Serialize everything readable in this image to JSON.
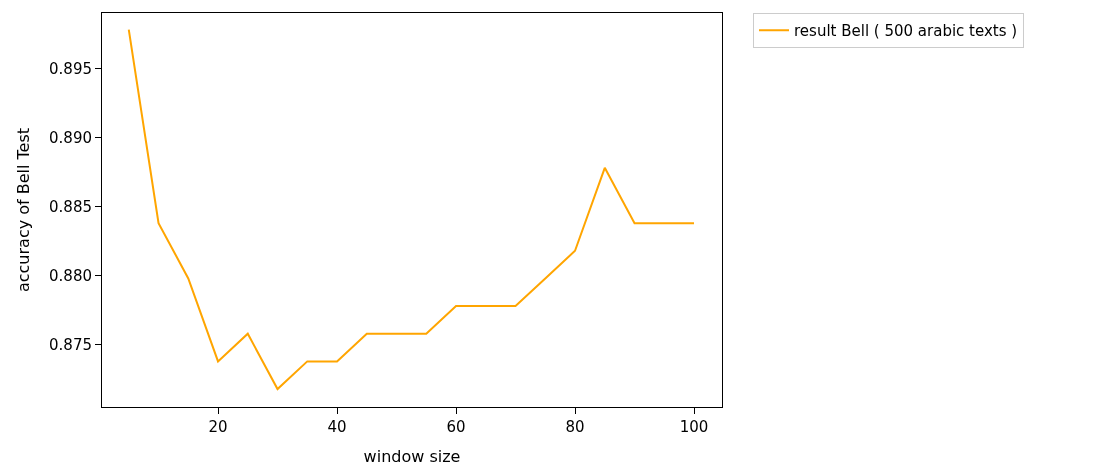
{
  "chart_data": {
    "type": "line",
    "xlabel": "window size",
    "ylabel": "accuracy of Bell Test",
    "x": [
      5,
      10,
      15,
      20,
      25,
      30,
      35,
      40,
      45,
      50,
      55,
      60,
      65,
      70,
      75,
      80,
      85,
      90,
      95,
      100
    ],
    "series": [
      {
        "name": "result Bell ( 500 arabic texts )",
        "color": "#ffa500",
        "values": [
          0.8978,
          0.8838,
          0.8798,
          0.8738,
          0.8758,
          0.8718,
          0.8738,
          0.8738,
          0.8758,
          0.8758,
          0.8758,
          0.8778,
          0.8778,
          0.8778,
          0.8798,
          0.8818,
          0.8878,
          0.8838,
          0.8838,
          0.8838
        ]
      }
    ],
    "xlim": [
      0.5,
      104.7
    ],
    "xticks": [
      20,
      40,
      60,
      80,
      100
    ],
    "ylim": [
      0.8705,
      0.899
    ],
    "yticks": [
      {
        "value": 0.875,
        "label": "0.875"
      },
      {
        "value": 0.88,
        "label": "0.880"
      },
      {
        "value": 0.885,
        "label": "0.885"
      },
      {
        "value": 0.89,
        "label": "0.890"
      },
      {
        "value": 0.895,
        "label": "0.895"
      }
    ],
    "grid": false,
    "legend": "top right",
    "marker": "none",
    "line_style": "solid"
  }
}
